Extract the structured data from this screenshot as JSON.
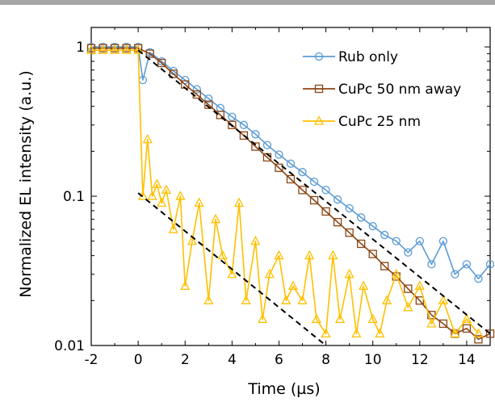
{
  "chart_data": {
    "type": "scatter",
    "title": "",
    "xlabel": "Time (µs)",
    "ylabel": "Normalized EL intensity (a.u.)",
    "xlim": [
      -2,
      15
    ],
    "ylim": [
      0.01,
      1.35
    ],
    "y_scale": "log",
    "grid": false,
    "legend_position": "top-right",
    "x_ticks": [
      -2,
      0,
      2,
      4,
      6,
      8,
      10,
      12,
      14
    ],
    "x_tick_labels": [
      "-2",
      "0",
      "2",
      "4",
      "6",
      "8",
      "10",
      "12",
      "14"
    ],
    "y_ticks": [
      0.01,
      0.1,
      1
    ],
    "y_tick_labels": [
      "0.01",
      "0.1",
      "1"
    ],
    "series": [
      {
        "name": "Rub only",
        "color": "#5b9bd5",
        "marker": "circle",
        "x": [
          -2.0,
          -1.5,
          -1.0,
          -0.5,
          0.0,
          0.2,
          0.5,
          1.0,
          1.5,
          2.0,
          2.5,
          3.0,
          3.5,
          4.0,
          4.5,
          5.0,
          5.5,
          6.0,
          6.5,
          7.0,
          7.5,
          8.0,
          8.5,
          9.0,
          9.5,
          10.0,
          10.5,
          11.0,
          11.5,
          12.0,
          12.5,
          13.0,
          13.5,
          14.0,
          14.5,
          15.0
        ],
        "y": [
          1.0,
          1.0,
          1.0,
          1.0,
          1.0,
          0.6,
          0.92,
          0.8,
          0.69,
          0.6,
          0.52,
          0.45,
          0.39,
          0.34,
          0.3,
          0.26,
          0.22,
          0.19,
          0.165,
          0.145,
          0.125,
          0.11,
          0.095,
          0.083,
          0.072,
          0.063,
          0.055,
          0.05,
          0.042,
          0.05,
          0.035,
          0.05,
          0.03,
          0.035,
          0.028,
          0.035
        ]
      },
      {
        "name": "CuPc 50 nm away",
        "color": "#8b4513",
        "marker": "square",
        "x": [
          -2.0,
          -1.5,
          -1.0,
          -0.5,
          0.0,
          0.5,
          1.0,
          1.5,
          2.0,
          2.5,
          3.0,
          3.5,
          4.0,
          4.5,
          5.0,
          5.5,
          6.0,
          6.5,
          7.0,
          7.5,
          8.0,
          8.5,
          9.0,
          9.5,
          10.0,
          10.5,
          11.0,
          11.5,
          12.0,
          12.5,
          13.0,
          13.5,
          14.0,
          14.5,
          15.0
        ],
        "y": [
          0.98,
          0.98,
          0.98,
          0.98,
          0.98,
          0.9,
          0.78,
          0.66,
          0.56,
          0.48,
          0.41,
          0.35,
          0.3,
          0.255,
          0.215,
          0.182,
          0.155,
          0.13,
          0.11,
          0.094,
          0.079,
          0.067,
          0.057,
          0.048,
          0.041,
          0.034,
          0.029,
          0.024,
          0.02,
          0.016,
          0.014,
          0.012,
          0.013,
          0.011,
          0.012
        ]
      },
      {
        "name": "CuPc 25 nm",
        "color": "#ffc000",
        "marker": "triangle",
        "x": [
          -2.0,
          -1.5,
          -1.0,
          -0.5,
          0.0,
          0.2,
          0.4,
          0.6,
          0.8,
          1.0,
          1.2,
          1.5,
          1.8,
          2.0,
          2.3,
          2.6,
          3.0,
          3.3,
          3.6,
          4.0,
          4.3,
          4.6,
          5.0,
          5.3,
          5.6,
          6.0,
          6.3,
          6.6,
          7.0,
          7.3,
          7.6,
          8.0,
          8.3,
          8.6,
          9.0,
          9.3,
          9.6,
          10.0,
          10.3,
          10.6,
          11.0,
          11.5,
          12.0,
          12.5,
          13.0,
          13.5,
          14.0,
          14.5
        ],
        "y": [
          0.95,
          0.95,
          0.95,
          0.95,
          0.95,
          0.1,
          0.24,
          0.1,
          0.12,
          0.09,
          0.11,
          0.06,
          0.1,
          0.025,
          0.05,
          0.09,
          0.02,
          0.07,
          0.04,
          0.03,
          0.09,
          0.02,
          0.05,
          0.015,
          0.03,
          0.04,
          0.02,
          0.025,
          0.02,
          0.04,
          0.015,
          0.012,
          0.04,
          0.015,
          0.03,
          0.012,
          0.025,
          0.015,
          0.012,
          0.02,
          0.03,
          0.018,
          0.025,
          0.014,
          0.02,
          0.012,
          0.015,
          0.012
        ]
      }
    ],
    "fit_lines": [
      {
        "style": "dashed",
        "color": "#000000",
        "x": [
          0.0,
          15.0
        ],
        "y": [
          0.95,
          0.012
        ]
      },
      {
        "style": "dashed",
        "color": "#000000",
        "x": [
          0.0,
          8.0
        ],
        "y": [
          0.105,
          0.01
        ]
      }
    ]
  }
}
